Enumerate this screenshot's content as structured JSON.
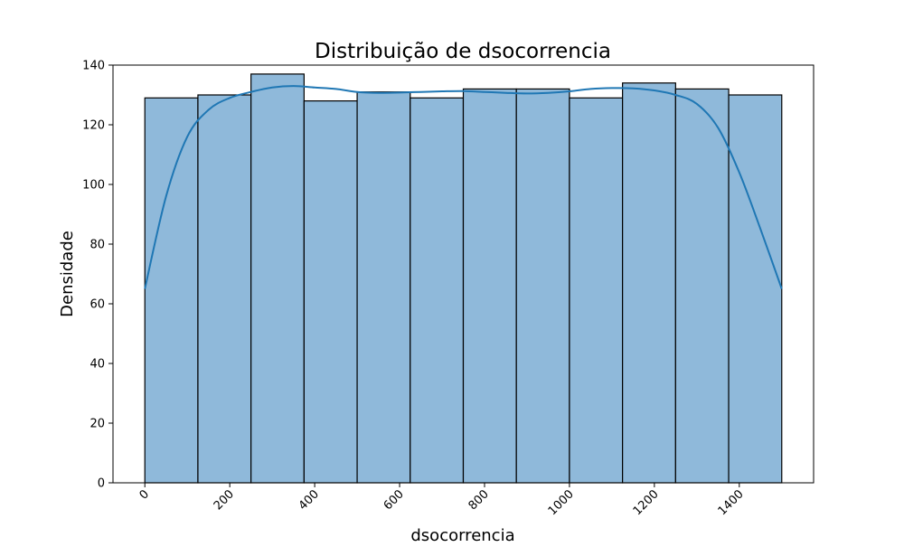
{
  "chart_data": {
    "type": "bar",
    "title": "Distribuição de dsocorrencia",
    "xlabel": "dsocorrencia",
    "ylabel": "Densidade",
    "bins": [
      {
        "start": 0,
        "end": 125,
        "count": 129
      },
      {
        "start": 125,
        "end": 250,
        "count": 130
      },
      {
        "start": 250,
        "end": 375,
        "count": 137
      },
      {
        "start": 375,
        "end": 500,
        "count": 128
      },
      {
        "start": 500,
        "end": 625,
        "count": 131
      },
      {
        "start": 625,
        "end": 750,
        "count": 129
      },
      {
        "start": 750,
        "end": 875,
        "count": 132
      },
      {
        "start": 875,
        "end": 1000,
        "count": 132
      },
      {
        "start": 1000,
        "end": 1125,
        "count": 129
      },
      {
        "start": 1125,
        "end": 1250,
        "count": 134
      },
      {
        "start": 1250,
        "end": 1375,
        "count": 132
      },
      {
        "start": 1375,
        "end": 1500,
        "count": 130
      }
    ],
    "kde": {
      "x": [
        0,
        50,
        100,
        150,
        200,
        250,
        300,
        350,
        400,
        450,
        500,
        550,
        600,
        650,
        700,
        750,
        800,
        850,
        900,
        950,
        1000,
        1050,
        1100,
        1150,
        1200,
        1250,
        1300,
        1350,
        1400,
        1450,
        1500
      ],
      "y": [
        65,
        96,
        116,
        125,
        129,
        131,
        132.5,
        133,
        132.5,
        132,
        131,
        130.7,
        130.8,
        131,
        131.2,
        131.3,
        131,
        130.7,
        130.5,
        130.7,
        131.2,
        132,
        132.3,
        132.2,
        131.5,
        130,
        127,
        119,
        104,
        85,
        65
      ]
    },
    "xlim": [
      -75,
      1575
    ],
    "ylim": [
      0,
      140
    ],
    "xticks": [
      0,
      200,
      400,
      600,
      800,
      1000,
      1200,
      1400
    ],
    "yticks": [
      0,
      20,
      40,
      60,
      80,
      100,
      120,
      140
    ],
    "xtick_rotation": 45,
    "grid": false,
    "colors": {
      "bar_fill": "#8fb9da",
      "bar_edge": "#000000",
      "kde_line": "#1f77b4",
      "axes": "#000000"
    }
  }
}
